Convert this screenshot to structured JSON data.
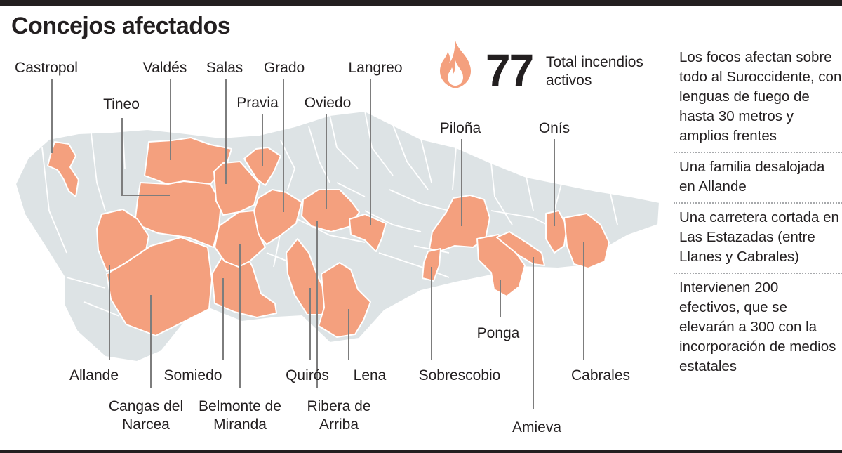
{
  "title": "Concejos afectados",
  "stat": {
    "value": "77",
    "caption": "Total incendios activos"
  },
  "notes": [
    "Los focos afectan sobre todo al Suroccidente, con lenguas de fuego de hasta 30 metros y amplios frentes",
    "Una familia desalojada en Allande",
    "Una carretera cortada en Las Estazadas (entre Llanes y Cabrales)",
    "Intervienen 200 efectivos, que se elevarán a 300 con la incorporación de medios estatales"
  ],
  "municipalities": {
    "castropol": "Castropol",
    "tineo": "Tineo",
    "valdes": "Valdés",
    "salas": "Salas",
    "grado": "Grado",
    "pravia": "Pravia",
    "oviedo": "Oviedo",
    "langreo": "Langreo",
    "pilona": "Piloña",
    "onis": "Onís",
    "allande": "Allande",
    "cangas": "Cangas del Narcea",
    "somiedo": "Somiedo",
    "belmonte": "Belmonte de Miranda",
    "quiros": "Quirós",
    "ribera": "Ribera de Arriba",
    "lena": "Lena",
    "sobrescobio": "Sobrescobio",
    "ponga": "Ponga",
    "amieva": "Amieva",
    "cabrales": "Cabrales"
  },
  "colors": {
    "affected": "#f4a07e",
    "region": "#dde3e5",
    "borders": "#ffffff",
    "text": "#231f20",
    "leader": "#7d7d7d"
  }
}
